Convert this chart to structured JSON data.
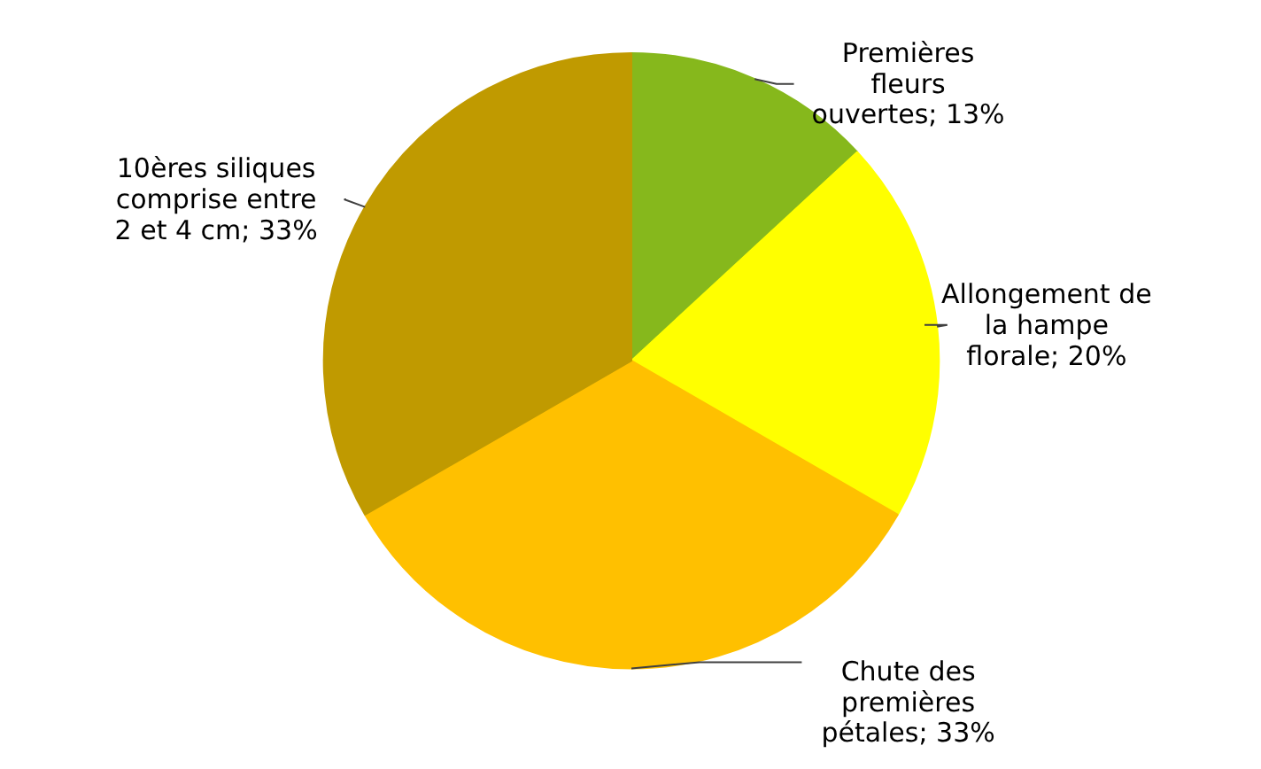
{
  "chart_data": {
    "type": "pie",
    "categories": [
      "Premières fleurs ouvertes",
      "Allongement de la hampe florale",
      "Chute des premières pétales",
      "10ères siliques comprise entre 2 et 4 cm"
    ],
    "values": [
      13,
      20,
      33,
      33
    ],
    "value_labels": [
      "13%",
      "20%",
      "33%",
      "33%"
    ],
    "colors": [
      "#86b81c",
      "#ffff00",
      "#ffc000",
      "#c09a00"
    ]
  }
}
